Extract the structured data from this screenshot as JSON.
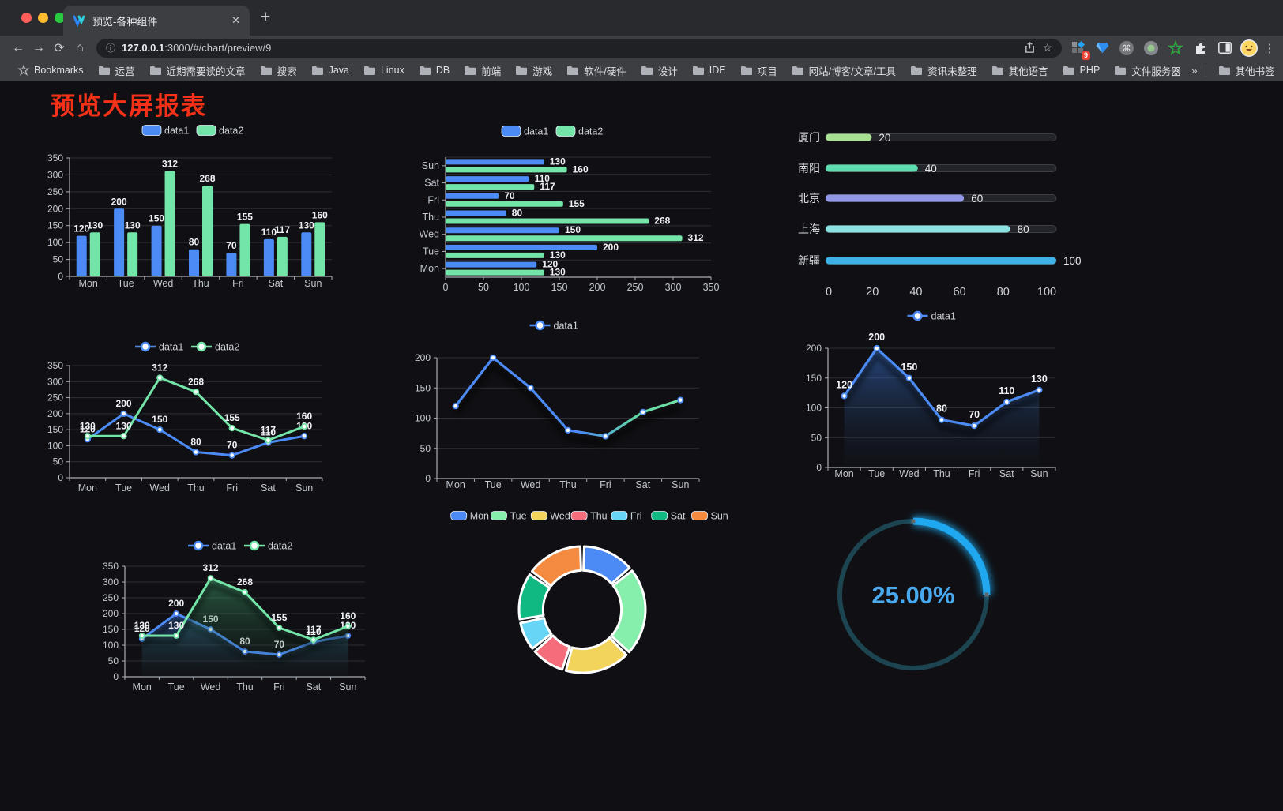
{
  "browser": {
    "tab_title": "预览-各种组件",
    "close_glyph": "✕",
    "newtab_glyph": "+",
    "back_glyph": "←",
    "forward_glyph": "→",
    "reload_glyph": "⟳",
    "home_glyph": "⌂",
    "info_glyph": "ⓘ",
    "star_glyph": "☆",
    "menu_glyph": "⋮",
    "url_host": "127.0.0.1",
    "url_rest": ":3000/#/chart/preview/9",
    "ext_badge": "9",
    "bookmarks_label": "Bookmarks",
    "bookmarks": [
      "运营",
      "近期需要读的文章",
      "搜索",
      "Java",
      "Linux",
      "DB",
      "前端",
      "游戏",
      "软件/硬件",
      "设计",
      "IDE",
      "项目",
      "网站/博客/文章/工具",
      "资讯未整理",
      "其他语言",
      "PHP",
      "文件服务器"
    ],
    "overflow_chevron": "»",
    "other_bookmarks": "其他书签"
  },
  "page": {
    "title": "预览大屏报表"
  },
  "theme": {
    "data1_color": "#4c8bf5",
    "data2_color": "#74e5a8",
    "tick_color": "#c3c7cf",
    "grid_color": "#2e2f35",
    "axis_color": "#a9adb5",
    "value_color": "#eff1f4",
    "legend_color": "#ced2d9"
  },
  "chart_data": [
    {
      "id": "bar-vertical",
      "type": "bar",
      "categories": [
        "Mon",
        "Tue",
        "Wed",
        "Thu",
        "Fri",
        "Sat",
        "Sun"
      ],
      "series": [
        {
          "name": "data1",
          "color": "#4c8bf5",
          "values": [
            120,
            200,
            150,
            80,
            70,
            110,
            130
          ]
        },
        {
          "name": "data2",
          "color": "#74e5a8",
          "values": [
            130,
            130,
            312,
            268,
            155,
            117,
            160
          ]
        }
      ],
      "ylim": [
        0,
        350
      ],
      "ystep": 50,
      "legend_position": "top",
      "grid": true
    },
    {
      "id": "bar-horizontal",
      "type": "bar",
      "orientation": "horizontal",
      "categories": [
        "Mon",
        "Tue",
        "Wed",
        "Thu",
        "Fri",
        "Sat",
        "Sun"
      ],
      "series": [
        {
          "name": "data1",
          "color": "#4c8bf5",
          "values": [
            120,
            200,
            150,
            80,
            70,
            110,
            130
          ]
        },
        {
          "name": "data2",
          "color": "#74e5a8",
          "values": [
            130,
            130,
            312,
            268,
            155,
            117,
            160
          ]
        }
      ],
      "xlim": [
        0,
        350
      ],
      "xstep": 50,
      "legend_position": "top",
      "grid": true
    },
    {
      "id": "progress-bars",
      "type": "bar",
      "orientation": "horizontal-progress",
      "categories": [
        "厦门",
        "南阳",
        "北京",
        "上海",
        "新疆"
      ],
      "values": [
        20,
        40,
        60,
        80,
        100
      ],
      "colors": [
        "#a9df92",
        "#5fdbb0",
        "#9298e6",
        "#8ae3e0",
        "#3fb2e5"
      ],
      "xlim": [
        0,
        100
      ],
      "xticks": [
        0,
        20,
        40,
        60,
        80,
        100
      ]
    },
    {
      "id": "line-dual",
      "type": "line",
      "categories": [
        "Mon",
        "Tue",
        "Wed",
        "Thu",
        "Fri",
        "Sat",
        "Sun"
      ],
      "series": [
        {
          "name": "data1",
          "color": "#4c8bf5",
          "values": [
            120,
            200,
            150,
            80,
            70,
            110,
            130
          ]
        },
        {
          "name": "data2",
          "color": "#74e5a8",
          "values": [
            130,
            130,
            312,
            268,
            155,
            117,
            160
          ]
        }
      ],
      "ylim": [
        0,
        350
      ],
      "ystep": 50,
      "labels": true,
      "legend_position": "top"
    },
    {
      "id": "line-gradient",
      "type": "line",
      "categories": [
        "Mon",
        "Tue",
        "Wed",
        "Thu",
        "Fri",
        "Sat",
        "Sun"
      ],
      "series": [
        {
          "name": "data1",
          "color": "#4c8bf5",
          "color_end": "#74e5a8",
          "values": [
            120,
            200,
            150,
            80,
            70,
            110,
            130
          ]
        }
      ],
      "ylim": [
        0,
        200
      ],
      "ystep": 50,
      "labels": false,
      "legend_position": "top",
      "shadow": true
    },
    {
      "id": "area-single",
      "type": "area",
      "categories": [
        "Mon",
        "Tue",
        "Wed",
        "Thu",
        "Fri",
        "Sat",
        "Sun"
      ],
      "series": [
        {
          "name": "data1",
          "color": "#4c8bf5",
          "values": [
            120,
            200,
            150,
            80,
            70,
            110,
            130
          ]
        }
      ],
      "ylim": [
        0,
        200
      ],
      "ystep": 50,
      "labels": true,
      "legend_position": "top",
      "shadow": true
    },
    {
      "id": "area-dual",
      "type": "area",
      "categories": [
        "Mon",
        "Tue",
        "Wed",
        "Thu",
        "Fri",
        "Sat",
        "Sun"
      ],
      "series": [
        {
          "name": "data1",
          "color": "#4c8bf5",
          "values": [
            120,
            200,
            150,
            80,
            70,
            110,
            130
          ]
        },
        {
          "name": "data2",
          "color": "#74e5a8",
          "values": [
            130,
            130,
            312,
            268,
            155,
            117,
            160
          ]
        }
      ],
      "ylim": [
        0,
        350
      ],
      "ystep": 50,
      "labels": true,
      "legend_position": "top",
      "shadow": true
    },
    {
      "id": "donut",
      "type": "pie",
      "categories": [
        "Mon",
        "Tue",
        "Wed",
        "Thu",
        "Fri",
        "Sat",
        "Sun"
      ],
      "values": [
        120,
        200,
        150,
        80,
        70,
        110,
        130
      ],
      "colors": [
        "#4c8bf5",
        "#86efac",
        "#f2d45c",
        "#f56c7b",
        "#67d5f5",
        "#10b981",
        "#f58b40"
      ],
      "inner_radius_ratio": 0.62,
      "legend_position": "top"
    },
    {
      "id": "gauge",
      "type": "gauge",
      "value": 25,
      "label": "25.00%",
      "arc_color": "#1fa8ef",
      "track_color": "#1c4551",
      "text_color": "#49a9ef"
    }
  ]
}
